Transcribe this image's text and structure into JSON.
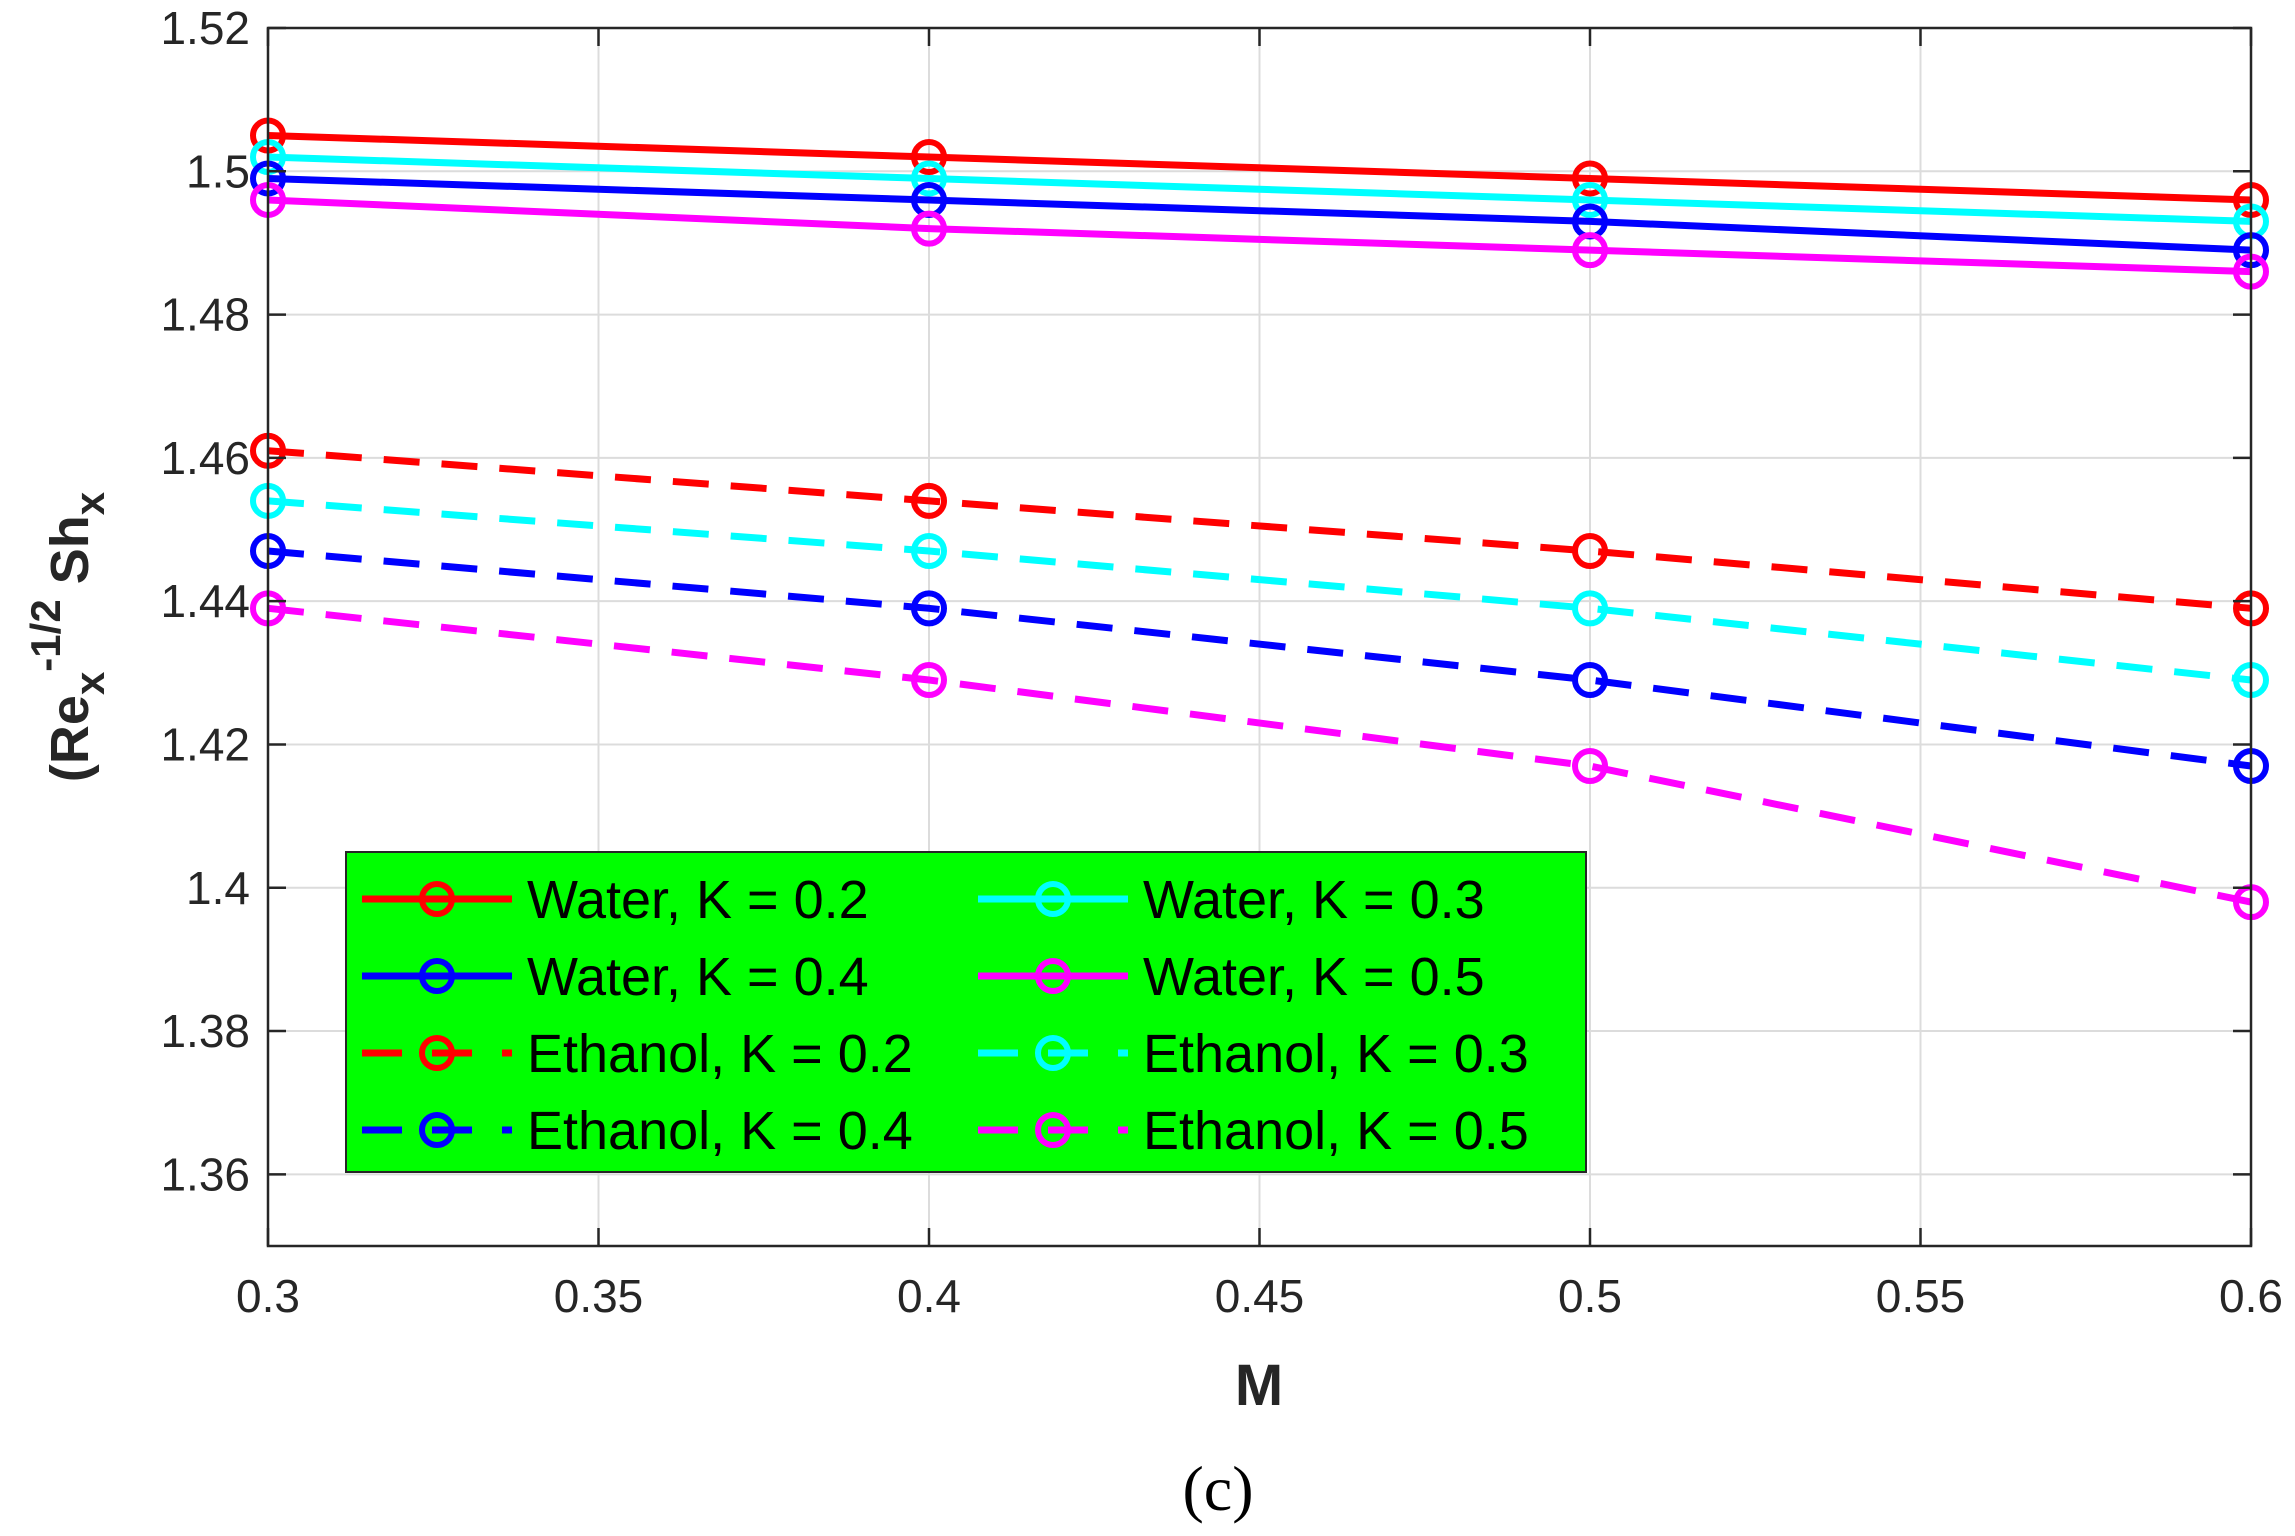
{
  "chart_data": {
    "type": "line",
    "xlabel": "M",
    "ylabel": {
      "base": "(Re",
      "sub1": "x",
      "sup": "-1/2",
      "mid": " Sh",
      "sub2": "x"
    },
    "panel_label": "(c)",
    "xlim": [
      0.3,
      0.6
    ],
    "ylim": [
      1.35,
      1.52
    ],
    "x_ticks": [
      0.3,
      0.35,
      0.4,
      0.45,
      0.5,
      0.55,
      0.6
    ],
    "x_tick_labels": [
      "0.3",
      "0.35",
      "0.4",
      "0.45",
      "0.5",
      "0.55",
      "0.6"
    ],
    "y_ticks": [
      1.36,
      1.38,
      1.4,
      1.42,
      1.44,
      1.46,
      1.48,
      1.5,
      1.52
    ],
    "y_tick_labels": [
      "1.36",
      "1.38",
      "1.4",
      "1.42",
      "1.44",
      "1.46",
      "1.48",
      "1.5",
      "1.52"
    ],
    "grid": true,
    "legend_position": "lower-left",
    "legend_background": "#00ff00",
    "x": [
      0.3,
      0.4,
      0.5,
      0.6
    ],
    "series": [
      {
        "name": "Water, K = 0.2",
        "color": "#ff0000",
        "style": "solid",
        "values": [
          1.505,
          1.502,
          1.499,
          1.496
        ]
      },
      {
        "name": "Water, K = 0.3",
        "color": "#00ffff",
        "style": "solid",
        "values": [
          1.502,
          1.499,
          1.496,
          1.493
        ]
      },
      {
        "name": "Water, K = 0.4",
        "color": "#0000ff",
        "style": "solid",
        "values": [
          1.499,
          1.496,
          1.493,
          1.489
        ]
      },
      {
        "name": "Water, K = 0.5",
        "color": "#ff00ff",
        "style": "solid",
        "values": [
          1.496,
          1.492,
          1.489,
          1.486
        ]
      },
      {
        "name": "Ethanol, K = 0.2",
        "color": "#ff0000",
        "style": "dashed",
        "values": [
          1.461,
          1.454,
          1.447,
          1.439
        ]
      },
      {
        "name": "Ethanol, K = 0.3",
        "color": "#00ffff",
        "style": "dashed",
        "values": [
          1.454,
          1.447,
          1.439,
          1.429
        ]
      },
      {
        "name": "Ethanol, K = 0.4",
        "color": "#0000ff",
        "style": "dashed",
        "values": [
          1.447,
          1.439,
          1.429,
          1.417
        ]
      },
      {
        "name": "Ethanol, K = 0.5",
        "color": "#ff00ff",
        "style": "dashed",
        "values": [
          1.439,
          1.429,
          1.417,
          1.398
        ]
      }
    ]
  }
}
